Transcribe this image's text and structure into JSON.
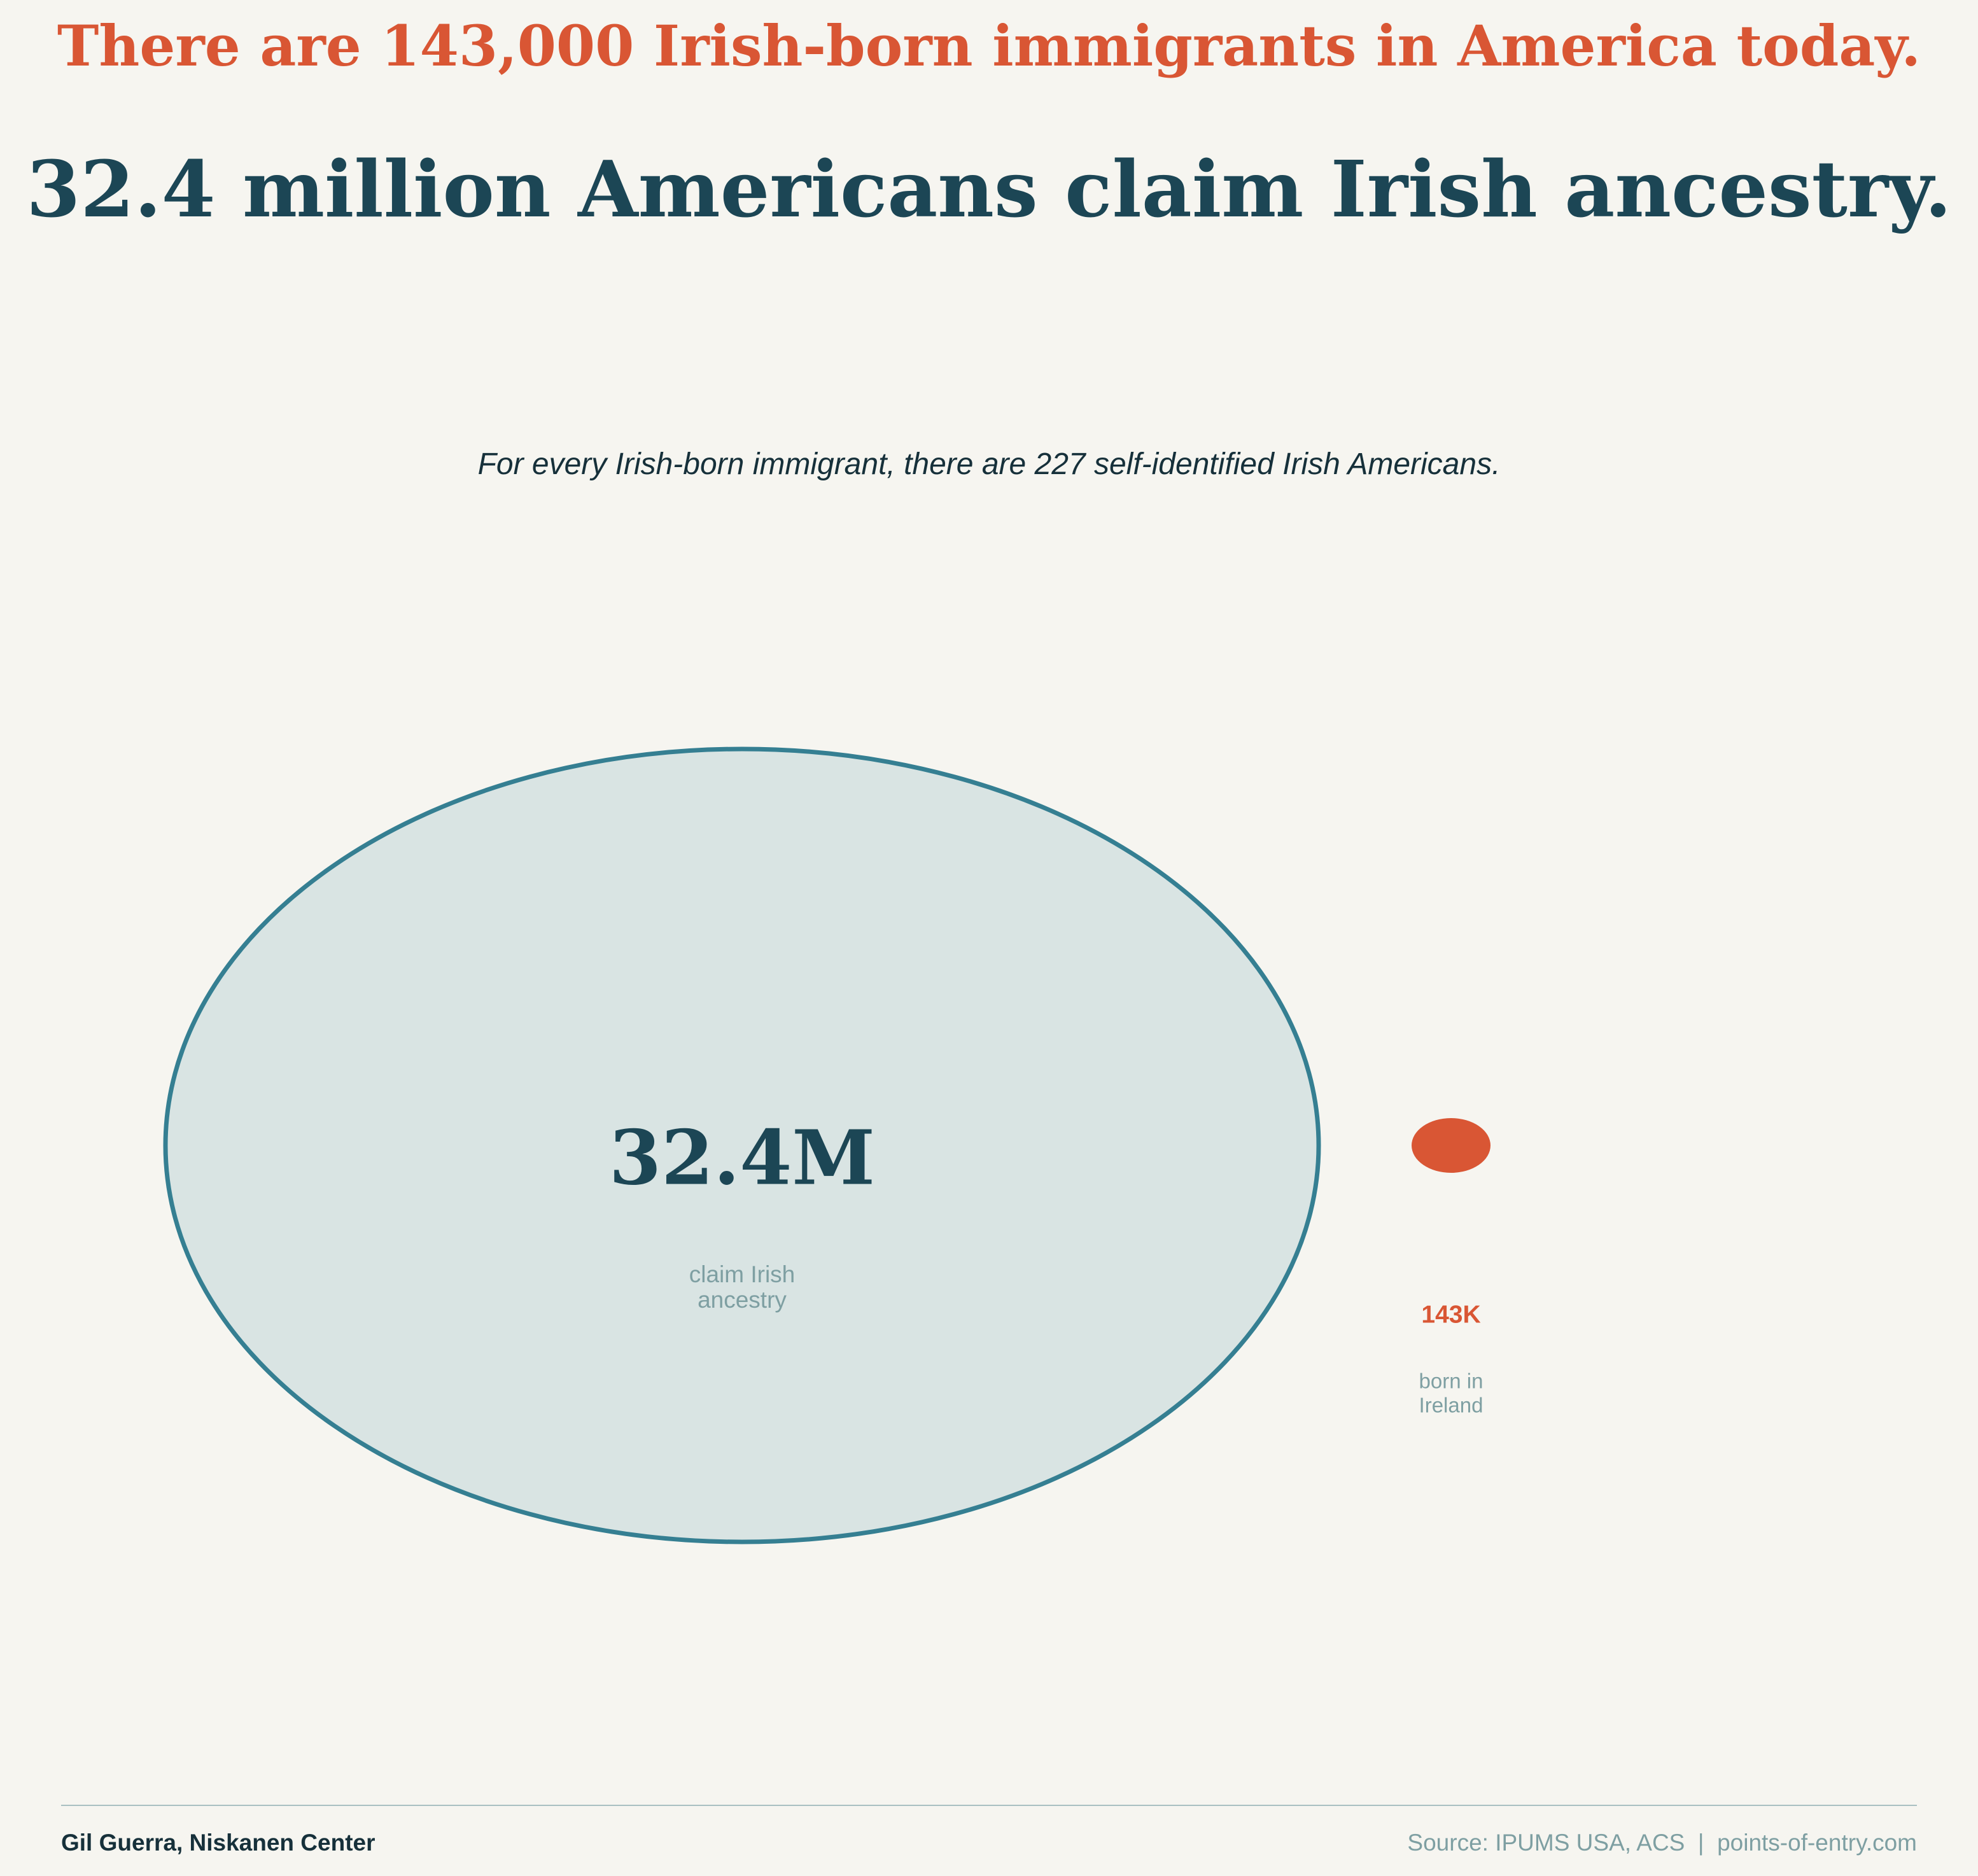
{
  "headline_top": "There are 143,000 Irish-born immigrants in America today.",
  "headline_main": "32.4 million Americans claim Irish ancestry.",
  "subtitle": "For every Irish-born immigrant, there are 227 self-identified Irish Americans.",
  "chart_data": {
    "type": "bubble",
    "title": "",
    "series": [
      {
        "value": 32400000,
        "value_label": "32.4M",
        "caption_lines": [
          "claim Irish",
          "ancestry"
        ],
        "fill": "#d9e4e3",
        "stroke": "#357f92",
        "label_color": "#1c4655"
      },
      {
        "value": 143000,
        "value_label": "143K",
        "caption_lines": [
          "born in",
          "Ireland"
        ],
        "fill": "#d95634",
        "stroke": "#d95634",
        "label_color": "#d95634"
      }
    ]
  },
  "colors": {
    "background": "#f6f5f0",
    "accent_orange": "#d95634",
    "accent_dark": "#1c4655",
    "muted": "#7e9fa2"
  },
  "footer": {
    "credit": "Gil Guerra, Niskanen Center",
    "source": "Source: IPUMS USA, ACS  |  points-of-entry.com"
  }
}
